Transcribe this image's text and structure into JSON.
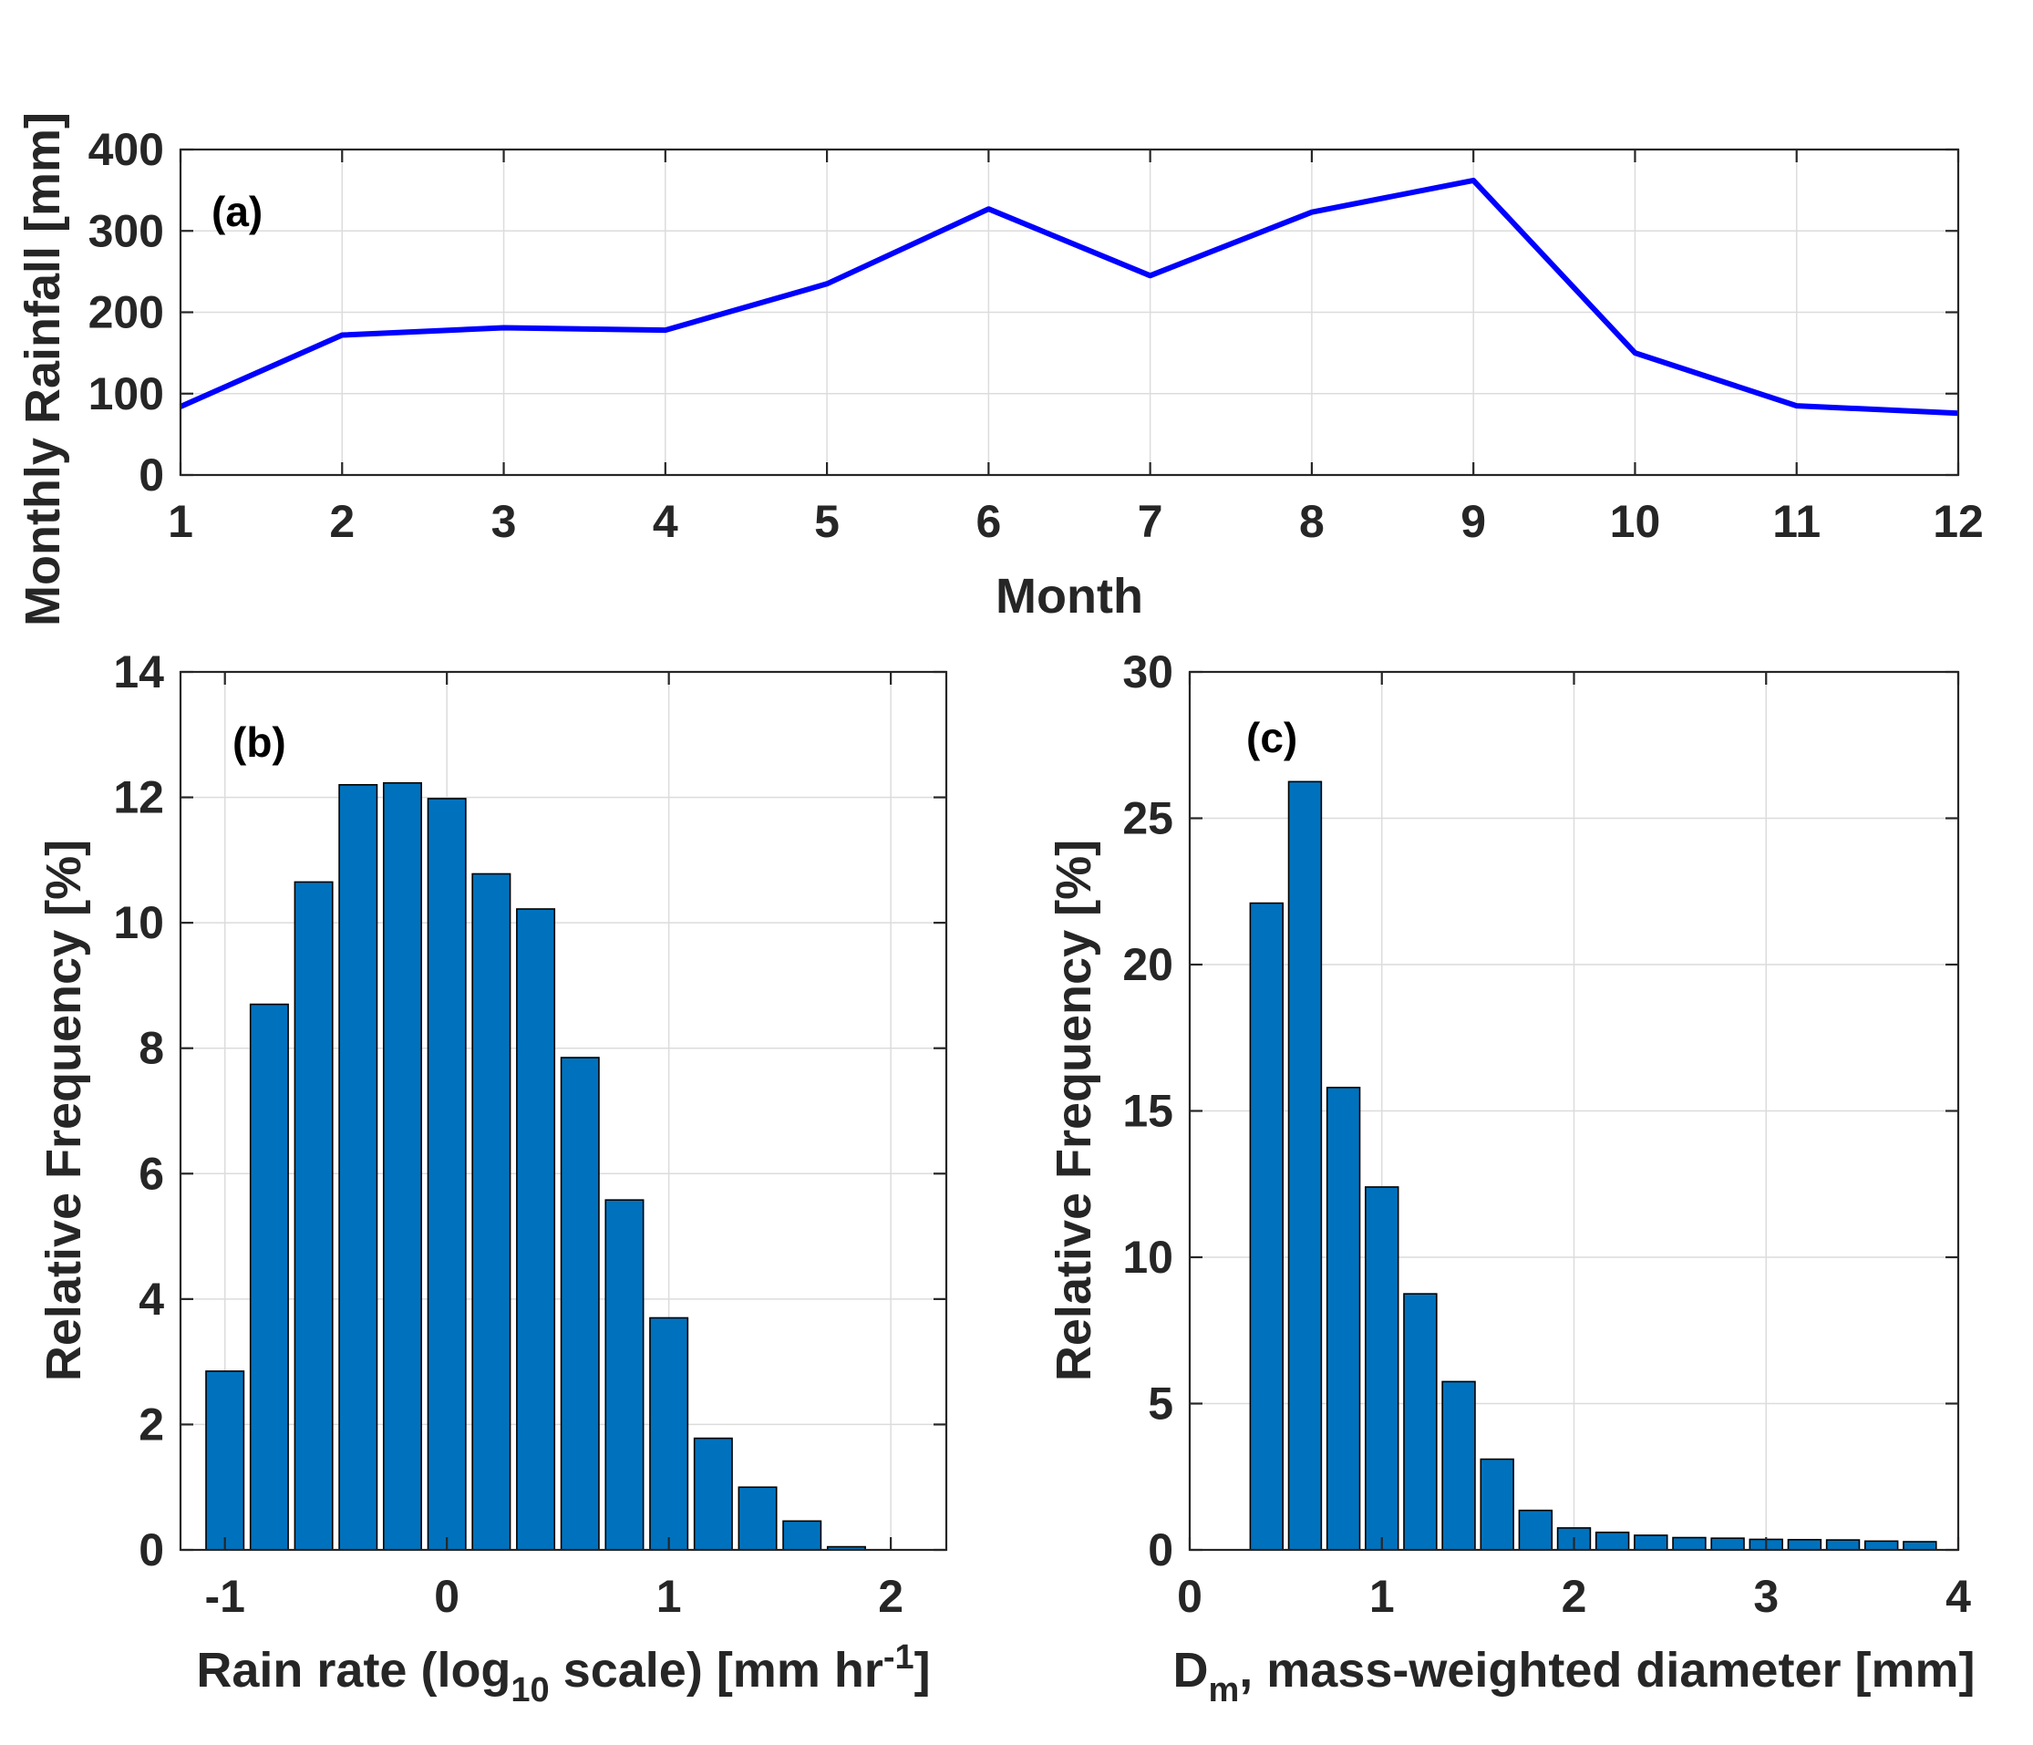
{
  "chart_data": [
    {
      "id": "a",
      "type": "line",
      "panel_label": "(a)",
      "xlabel": "Month",
      "ylabel": "Monthly Rainfall [mm]",
      "x": [
        1,
        2,
        3,
        4,
        5,
        6,
        7,
        8,
        9,
        10,
        11,
        12
      ],
      "values": [
        84,
        172,
        181,
        178,
        235,
        327,
        245,
        323,
        362,
        150,
        85,
        76
      ],
      "xlim": [
        1,
        12
      ],
      "ylim": [
        0,
        400
      ],
      "xticks": [
        1,
        2,
        3,
        4,
        5,
        6,
        7,
        8,
        9,
        10,
        11,
        12
      ],
      "yticks": [
        0,
        100,
        200,
        300,
        400
      ],
      "grid": true,
      "color": "#0000ff"
    },
    {
      "id": "b",
      "type": "bar",
      "panel_label": "(b)",
      "xlabel": "Rain rate (log",
      "xlabel_sub": "10",
      "xlabel_mid": " scale) [mm hr",
      "xlabel_sup": "-1",
      "xlabel_end": "]",
      "ylabel": "Relative Frequency [%]",
      "x": [
        -1.0,
        -0.8,
        -0.6,
        -0.4,
        -0.2,
        0.0,
        0.2,
        0.4,
        0.6,
        0.8,
        1.0,
        1.2,
        1.4,
        1.6,
        1.8
      ],
      "values": [
        2.85,
        8.7,
        10.65,
        12.2,
        12.23,
        11.98,
        10.78,
        10.22,
        7.85,
        5.58,
        3.7,
        1.78,
        1.0,
        0.46,
        0.05
      ],
      "bar_width": 0.17,
      "xlim": [
        -1.2,
        2.25
      ],
      "ylim": [
        0,
        14
      ],
      "xticks": [
        -1,
        0,
        1,
        2
      ],
      "yticks": [
        0,
        2,
        4,
        6,
        8,
        10,
        12,
        14
      ],
      "grid": true,
      "color": "#0072bd"
    },
    {
      "id": "c",
      "type": "bar",
      "panel_label": "(c)",
      "xlabel": "D",
      "xlabel_sub": "m",
      "xlabel_end": ", mass-weighted diameter [mm]",
      "ylabel": "Relative Frequency [%]",
      "x": [
        0.4,
        0.6,
        0.8,
        1.0,
        1.2,
        1.4,
        1.6,
        1.8,
        2.0,
        2.2,
        2.4,
        2.6,
        2.8,
        3.0,
        3.2,
        3.4,
        3.6,
        3.8
      ],
      "values": [
        22.1,
        26.25,
        15.8,
        12.4,
        8.75,
        5.75,
        3.1,
        1.35,
        0.75,
        0.6,
        0.5,
        0.42,
        0.4,
        0.36,
        0.35,
        0.34,
        0.3,
        0.28
      ],
      "bar_width": 0.17,
      "xlim": [
        0,
        4
      ],
      "ylim": [
        0,
        30
      ],
      "xticks": [
        0,
        1,
        2,
        3,
        4
      ],
      "yticks": [
        0,
        5,
        10,
        15,
        20,
        25,
        30
      ],
      "grid": true,
      "color": "#0072bd"
    }
  ]
}
